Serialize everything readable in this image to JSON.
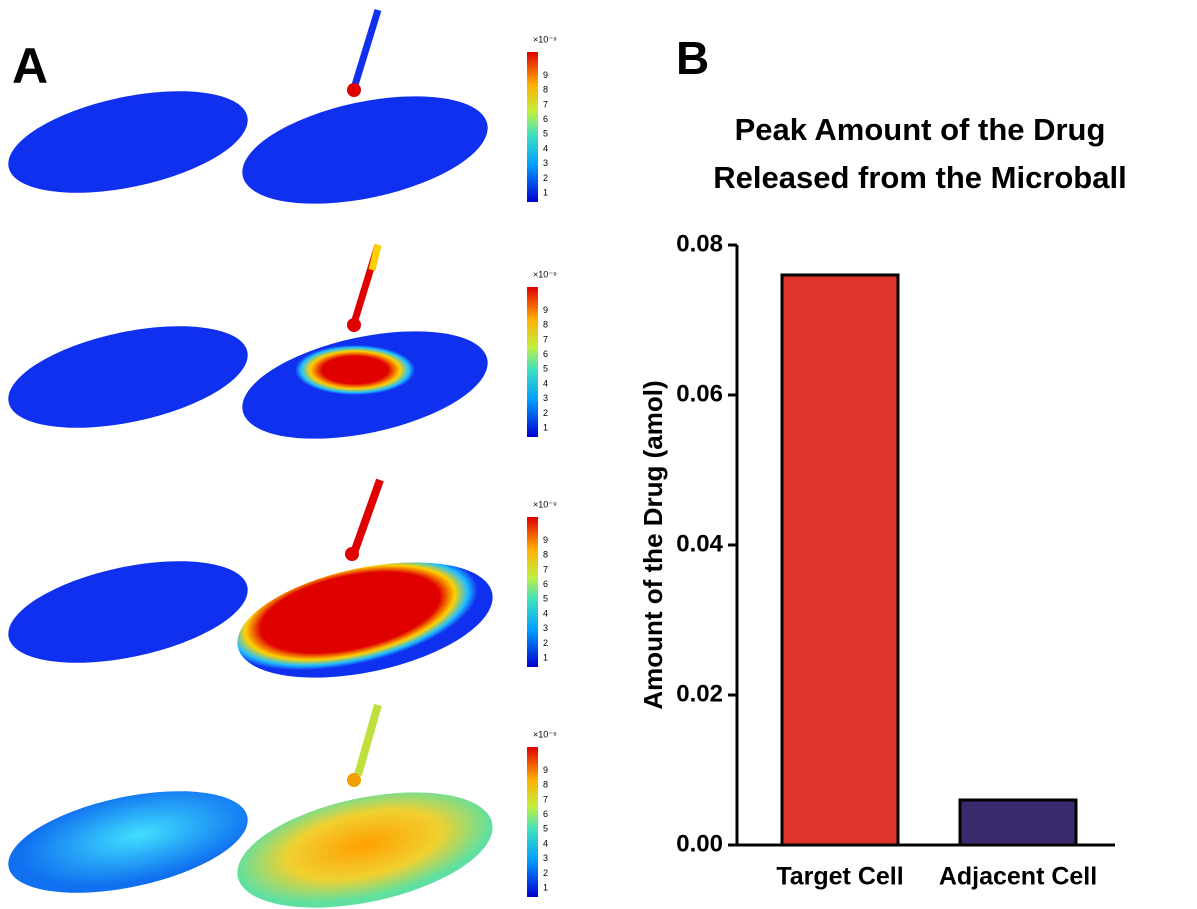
{
  "panel_a": {
    "label": "A",
    "colorbar_label": "×10⁻⁹",
    "colorbar_ticks": [
      1,
      2,
      3,
      4,
      5,
      6,
      7,
      8,
      9
    ]
  },
  "chart_data": {
    "type": "bar",
    "panel_label": "B",
    "title": [
      "Peak Amount of the Drug",
      "Released from the Microball"
    ],
    "y_label": "Amount of the Drug (amol)",
    "categories": [
      "Target Cell",
      "Adjacent Cell"
    ],
    "values": [
      0.076,
      0.006
    ],
    "colors": [
      "#e0352f",
      "#3b2a6e"
    ],
    "ylim": [
      0,
      0.08
    ],
    "yticks": [
      {
        "value": 0,
        "label": "0.00"
      },
      0.02,
      0.04,
      0.06,
      0.08
    ]
  }
}
